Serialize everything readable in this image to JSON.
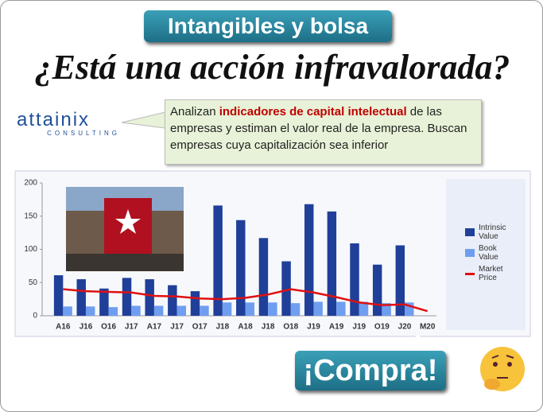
{
  "header": {
    "tag": "Intangibles y bolsa",
    "title": "¿Está una acción infravalorada?"
  },
  "logo": {
    "name": "attainix",
    "sub": "CONSULTING"
  },
  "note": {
    "parts": [
      "Analizan ",
      "indicadores de capital intelectual",
      " de las empresas y estiman el valor real de la empresa. Buscan empresas cuya capitalización sea inferior"
    ]
  },
  "callout": "¡Compra!",
  "chart_data": {
    "type": "bar",
    "legend": "right",
    "categories": [
      "A16",
      "J16",
      "O16",
      "J17",
      "A17",
      "J17",
      "O17",
      "J18",
      "A18",
      "J18",
      "O18",
      "J19",
      "A19",
      "J19",
      "O19",
      "J20",
      "M20"
    ],
    "series": [
      {
        "name": "Intrinsic Value",
        "color": "#1f3f99",
        "values": [
          61,
          55,
          41,
          57,
          55,
          46,
          37,
          166,
          144,
          117,
          82,
          168,
          157,
          109,
          77,
          106,
          null
        ]
      },
      {
        "name": "Book Value",
        "color": "#6f9ef0",
        "values": [
          14,
          14,
          13,
          15,
          15,
          15,
          15,
          20,
          20,
          20,
          19,
          21,
          21,
          21,
          19,
          20,
          null
        ]
      },
      {
        "name": "Market Price",
        "color": "#e01010",
        "type": "line",
        "values": [
          40,
          37,
          36,
          35,
          30,
          29,
          26,
          25,
          27,
          32,
          40,
          35,
          28,
          20,
          16,
          17,
          7
        ]
      }
    ],
    "ylim": [
      0,
      200
    ],
    "yticks": [
      0,
      50,
      100,
      150,
      200
    ],
    "grid": false
  }
}
